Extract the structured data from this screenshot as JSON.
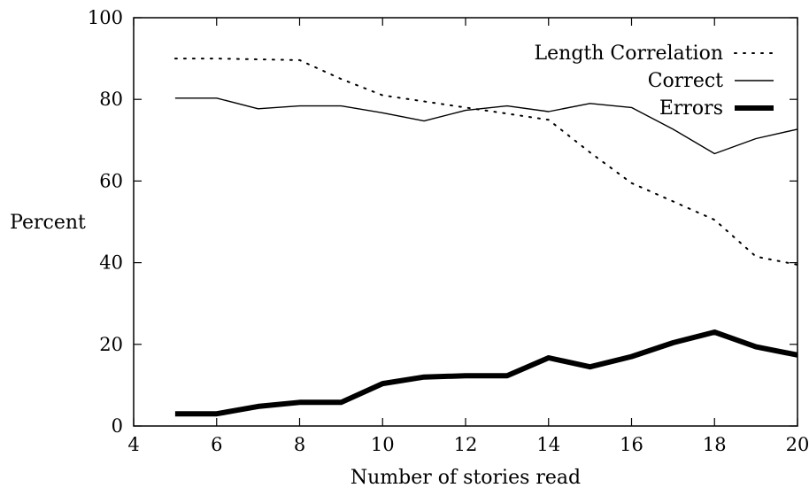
{
  "chart_data": {
    "type": "line",
    "title": "",
    "xlabel": "Number of stories read",
    "ylabel": "Percent",
    "xlim": [
      4,
      20
    ],
    "ylim": [
      0,
      100
    ],
    "xticks": [
      4,
      6,
      8,
      10,
      12,
      14,
      16,
      18,
      20
    ],
    "yticks": [
      0,
      20,
      40,
      60,
      80,
      100
    ],
    "grid": false,
    "legend_position": "top-right",
    "x": [
      5,
      6,
      7,
      8,
      9,
      10,
      11,
      12,
      13,
      14,
      15,
      16,
      17,
      18,
      19,
      20
    ],
    "series": [
      {
        "name": "Length Correlation",
        "style": "dotted",
        "color": "#000000",
        "values": [
          90,
          90,
          89.8,
          89.6,
          85,
          81,
          79.5,
          78,
          76.5,
          75,
          67,
          59.5,
          55,
          50.5,
          41.5,
          39.5
        ]
      },
      {
        "name": "Correct",
        "style": "solid",
        "color": "#000000",
        "values": [
          80.3,
          80.3,
          77.7,
          78.4,
          78.4,
          76.7,
          74.7,
          77.3,
          78.4,
          77,
          79,
          78,
          72.7,
          66.7,
          70.4,
          72.7
        ]
      },
      {
        "name": "Errors",
        "style": "thick",
        "color": "#000000",
        "values": [
          3,
          3,
          4.8,
          5.8,
          5.8,
          10.4,
          12,
          12.3,
          12.3,
          16.7,
          14.5,
          17,
          20.4,
          23,
          19.4,
          17.4
        ]
      }
    ]
  }
}
